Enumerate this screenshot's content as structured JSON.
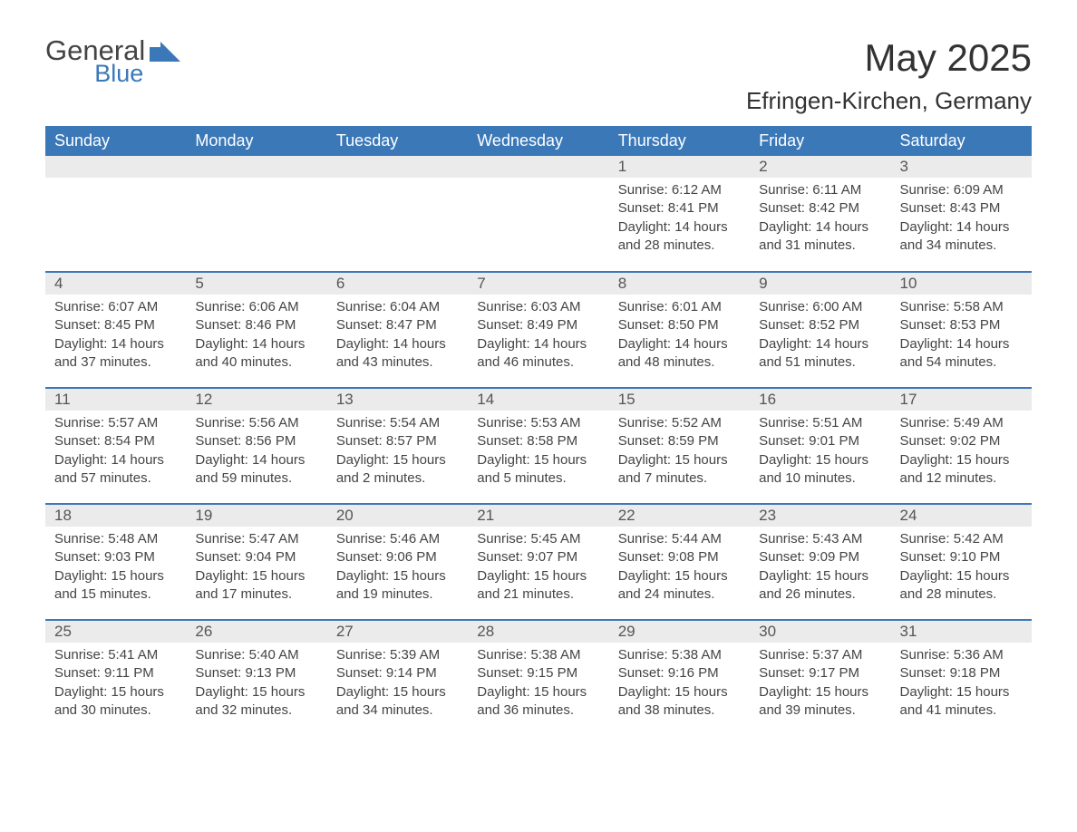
{
  "logo": {
    "general": "General",
    "blue": "Blue",
    "flag_color": "#3b78b8"
  },
  "title": "May 2025",
  "location": "Efringen-Kirchen, Germany",
  "colors": {
    "header_bg": "#3b78b8",
    "header_text": "#ffffff",
    "daynum_bg": "#ebebeb",
    "border": "#3b78b8",
    "body_text": "#444444"
  },
  "weekdays": [
    "Sunday",
    "Monday",
    "Tuesday",
    "Wednesday",
    "Thursday",
    "Friday",
    "Saturday"
  ],
  "weeks": [
    [
      null,
      null,
      null,
      null,
      {
        "n": "1",
        "sr": "Sunrise: 6:12 AM",
        "ss": "Sunset: 8:41 PM",
        "d1": "Daylight: 14 hours",
        "d2": "and 28 minutes."
      },
      {
        "n": "2",
        "sr": "Sunrise: 6:11 AM",
        "ss": "Sunset: 8:42 PM",
        "d1": "Daylight: 14 hours",
        "d2": "and 31 minutes."
      },
      {
        "n": "3",
        "sr": "Sunrise: 6:09 AM",
        "ss": "Sunset: 8:43 PM",
        "d1": "Daylight: 14 hours",
        "d2": "and 34 minutes."
      }
    ],
    [
      {
        "n": "4",
        "sr": "Sunrise: 6:07 AM",
        "ss": "Sunset: 8:45 PM",
        "d1": "Daylight: 14 hours",
        "d2": "and 37 minutes."
      },
      {
        "n": "5",
        "sr": "Sunrise: 6:06 AM",
        "ss": "Sunset: 8:46 PM",
        "d1": "Daylight: 14 hours",
        "d2": "and 40 minutes."
      },
      {
        "n": "6",
        "sr": "Sunrise: 6:04 AM",
        "ss": "Sunset: 8:47 PM",
        "d1": "Daylight: 14 hours",
        "d2": "and 43 minutes."
      },
      {
        "n": "7",
        "sr": "Sunrise: 6:03 AM",
        "ss": "Sunset: 8:49 PM",
        "d1": "Daylight: 14 hours",
        "d2": "and 46 minutes."
      },
      {
        "n": "8",
        "sr": "Sunrise: 6:01 AM",
        "ss": "Sunset: 8:50 PM",
        "d1": "Daylight: 14 hours",
        "d2": "and 48 minutes."
      },
      {
        "n": "9",
        "sr": "Sunrise: 6:00 AM",
        "ss": "Sunset: 8:52 PM",
        "d1": "Daylight: 14 hours",
        "d2": "and 51 minutes."
      },
      {
        "n": "10",
        "sr": "Sunrise: 5:58 AM",
        "ss": "Sunset: 8:53 PM",
        "d1": "Daylight: 14 hours",
        "d2": "and 54 minutes."
      }
    ],
    [
      {
        "n": "11",
        "sr": "Sunrise: 5:57 AM",
        "ss": "Sunset: 8:54 PM",
        "d1": "Daylight: 14 hours",
        "d2": "and 57 minutes."
      },
      {
        "n": "12",
        "sr": "Sunrise: 5:56 AM",
        "ss": "Sunset: 8:56 PM",
        "d1": "Daylight: 14 hours",
        "d2": "and 59 minutes."
      },
      {
        "n": "13",
        "sr": "Sunrise: 5:54 AM",
        "ss": "Sunset: 8:57 PM",
        "d1": "Daylight: 15 hours",
        "d2": "and 2 minutes."
      },
      {
        "n": "14",
        "sr": "Sunrise: 5:53 AM",
        "ss": "Sunset: 8:58 PM",
        "d1": "Daylight: 15 hours",
        "d2": "and 5 minutes."
      },
      {
        "n": "15",
        "sr": "Sunrise: 5:52 AM",
        "ss": "Sunset: 8:59 PM",
        "d1": "Daylight: 15 hours",
        "d2": "and 7 minutes."
      },
      {
        "n": "16",
        "sr": "Sunrise: 5:51 AM",
        "ss": "Sunset: 9:01 PM",
        "d1": "Daylight: 15 hours",
        "d2": "and 10 minutes."
      },
      {
        "n": "17",
        "sr": "Sunrise: 5:49 AM",
        "ss": "Sunset: 9:02 PM",
        "d1": "Daylight: 15 hours",
        "d2": "and 12 minutes."
      }
    ],
    [
      {
        "n": "18",
        "sr": "Sunrise: 5:48 AM",
        "ss": "Sunset: 9:03 PM",
        "d1": "Daylight: 15 hours",
        "d2": "and 15 minutes."
      },
      {
        "n": "19",
        "sr": "Sunrise: 5:47 AM",
        "ss": "Sunset: 9:04 PM",
        "d1": "Daylight: 15 hours",
        "d2": "and 17 minutes."
      },
      {
        "n": "20",
        "sr": "Sunrise: 5:46 AM",
        "ss": "Sunset: 9:06 PM",
        "d1": "Daylight: 15 hours",
        "d2": "and 19 minutes."
      },
      {
        "n": "21",
        "sr": "Sunrise: 5:45 AM",
        "ss": "Sunset: 9:07 PM",
        "d1": "Daylight: 15 hours",
        "d2": "and 21 minutes."
      },
      {
        "n": "22",
        "sr": "Sunrise: 5:44 AM",
        "ss": "Sunset: 9:08 PM",
        "d1": "Daylight: 15 hours",
        "d2": "and 24 minutes."
      },
      {
        "n": "23",
        "sr": "Sunrise: 5:43 AM",
        "ss": "Sunset: 9:09 PM",
        "d1": "Daylight: 15 hours",
        "d2": "and 26 minutes."
      },
      {
        "n": "24",
        "sr": "Sunrise: 5:42 AM",
        "ss": "Sunset: 9:10 PM",
        "d1": "Daylight: 15 hours",
        "d2": "and 28 minutes."
      }
    ],
    [
      {
        "n": "25",
        "sr": "Sunrise: 5:41 AM",
        "ss": "Sunset: 9:11 PM",
        "d1": "Daylight: 15 hours",
        "d2": "and 30 minutes."
      },
      {
        "n": "26",
        "sr": "Sunrise: 5:40 AM",
        "ss": "Sunset: 9:13 PM",
        "d1": "Daylight: 15 hours",
        "d2": "and 32 minutes."
      },
      {
        "n": "27",
        "sr": "Sunrise: 5:39 AM",
        "ss": "Sunset: 9:14 PM",
        "d1": "Daylight: 15 hours",
        "d2": "and 34 minutes."
      },
      {
        "n": "28",
        "sr": "Sunrise: 5:38 AM",
        "ss": "Sunset: 9:15 PM",
        "d1": "Daylight: 15 hours",
        "d2": "and 36 minutes."
      },
      {
        "n": "29",
        "sr": "Sunrise: 5:38 AM",
        "ss": "Sunset: 9:16 PM",
        "d1": "Daylight: 15 hours",
        "d2": "and 38 minutes."
      },
      {
        "n": "30",
        "sr": "Sunrise: 5:37 AM",
        "ss": "Sunset: 9:17 PM",
        "d1": "Daylight: 15 hours",
        "d2": "and 39 minutes."
      },
      {
        "n": "31",
        "sr": "Sunrise: 5:36 AM",
        "ss": "Sunset: 9:18 PM",
        "d1": "Daylight: 15 hours",
        "d2": "and 41 minutes."
      }
    ]
  ]
}
